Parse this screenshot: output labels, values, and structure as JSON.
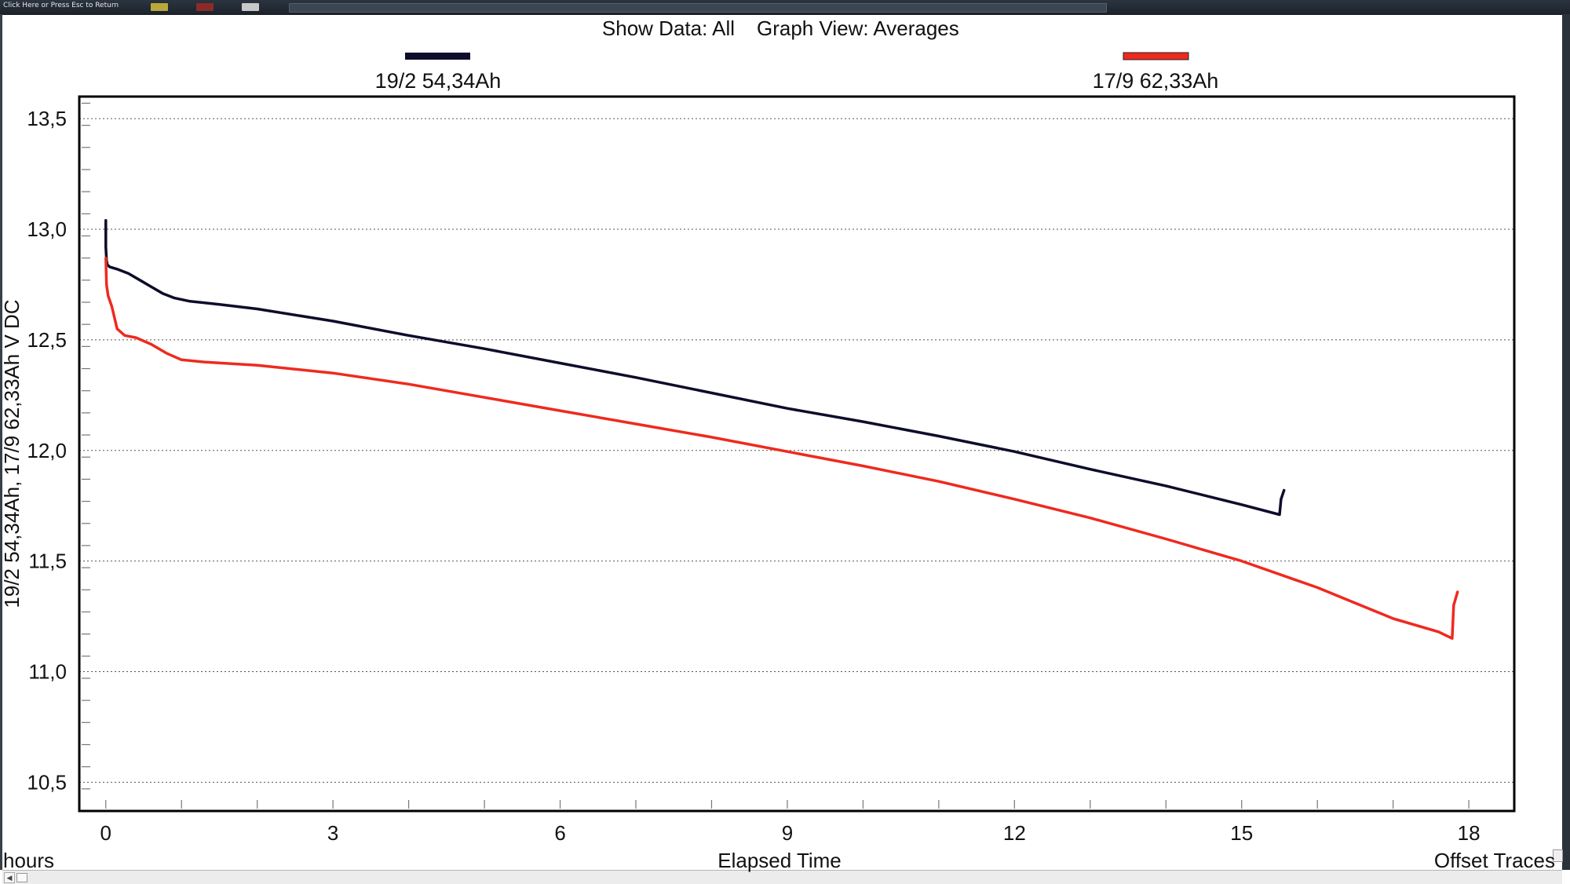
{
  "window": {
    "top_bar_label": "Click Here or Press Esc to Return"
  },
  "header": {
    "show_data_label": "Show Data: All",
    "graph_view_label": "Graph View: Averages"
  },
  "footer": {
    "x_unit_label": "hours",
    "offset_traces_label": "Offset Traces"
  },
  "chart_data": {
    "type": "line",
    "xlabel": "Elapsed Time",
    "ylabel": "19/2 54,34Ah, 17/9 62,33Ah    V DC",
    "xlim": [
      -0.35,
      18.6
    ],
    "ylim": [
      10.37,
      13.6
    ],
    "x_ticks": [
      0,
      3,
      6,
      9,
      12,
      15,
      18
    ],
    "x_tick_labels": [
      "0",
      "3",
      "6",
      "9",
      "12",
      "15",
      "18"
    ],
    "y_ticks": [
      10.5,
      11.0,
      11.5,
      12.0,
      12.5,
      13.0,
      13.5
    ],
    "y_tick_labels": [
      "10,5",
      "11,0",
      "11,5",
      "12,0",
      "12,5",
      "13,0",
      "13,5"
    ],
    "grid": "horizontal-dotted",
    "legend_placement": "top",
    "series": [
      {
        "name": "19/2 54,34Ah",
        "color": "#0d0d2b",
        "x": [
          0.0,
          0.0,
          0.01,
          0.02,
          0.05,
          0.15,
          0.3,
          0.45,
          0.6,
          0.75,
          0.9,
          1.1,
          1.5,
          2.0,
          3.0,
          4.0,
          5.0,
          6.0,
          7.0,
          8.0,
          9.0,
          10.0,
          11.0,
          12.0,
          13.0,
          14.0,
          15.0,
          15.5,
          15.52,
          15.56
        ],
        "y": [
          13.04,
          12.92,
          12.86,
          12.84,
          12.83,
          12.82,
          12.8,
          12.77,
          12.74,
          12.71,
          12.69,
          12.675,
          12.66,
          12.64,
          12.585,
          12.52,
          12.46,
          12.395,
          12.33,
          12.26,
          12.19,
          12.13,
          12.065,
          11.995,
          11.915,
          11.84,
          11.755,
          11.71,
          11.78,
          11.82
        ]
      },
      {
        "name": "17/9 62,33Ah",
        "color": "#ee2a1f",
        "x": [
          0.0,
          0.01,
          0.03,
          0.08,
          0.15,
          0.25,
          0.4,
          0.6,
          0.8,
          1.0,
          1.3,
          2.0,
          3.0,
          4.0,
          5.0,
          6.0,
          7.0,
          8.0,
          9.0,
          10.0,
          11.0,
          12.0,
          13.0,
          14.0,
          15.0,
          16.0,
          17.0,
          17.6,
          17.78,
          17.8,
          17.85
        ],
        "y": [
          12.87,
          12.75,
          12.7,
          12.65,
          12.55,
          12.52,
          12.51,
          12.48,
          12.44,
          12.41,
          12.4,
          12.385,
          12.35,
          12.3,
          12.24,
          12.18,
          12.12,
          12.06,
          11.995,
          11.93,
          11.86,
          11.78,
          11.695,
          11.6,
          11.5,
          11.38,
          11.24,
          11.18,
          11.15,
          11.3,
          11.36
        ]
      }
    ]
  }
}
